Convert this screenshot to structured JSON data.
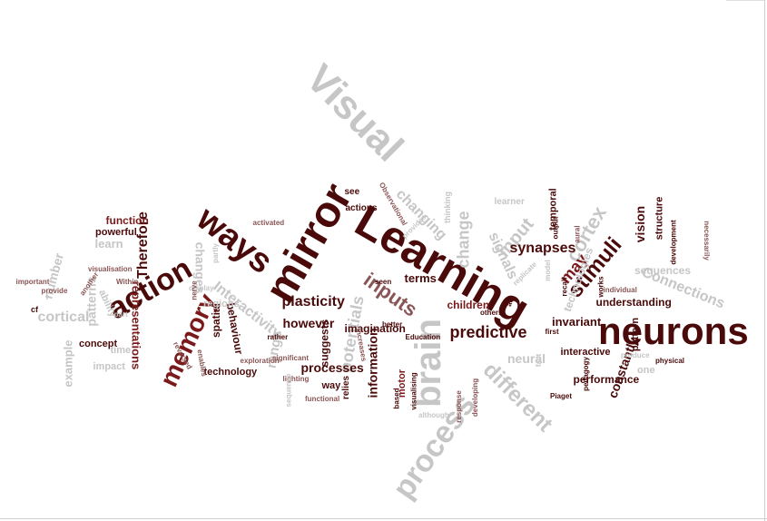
{
  "colors": {
    "dark": "#4a0a0a",
    "red": "#7a1a1a",
    "rose": "#8a5555",
    "gray": "#c6c6c6",
    "lightgray": "#d6d6d6"
  },
  "words": [
    {
      "text": "Learning",
      "color": "dark"
    },
    {
      "text": "neurons",
      "color": "dark"
    },
    {
      "text": "Visual",
      "color": "gray"
    },
    {
      "text": "mirror",
      "color": "dark"
    },
    {
      "text": "ways",
      "color": "dark"
    },
    {
      "text": "action",
      "color": "dark"
    },
    {
      "text": "brain",
      "color": "gray"
    },
    {
      "text": "process",
      "color": "gray"
    },
    {
      "text": "memory",
      "color": "red"
    },
    {
      "text": "stimuli",
      "color": "dark"
    },
    {
      "text": "different",
      "color": "gray"
    },
    {
      "text": "inputs",
      "color": "rose"
    },
    {
      "text": "input",
      "color": "gray"
    },
    {
      "text": "cortex",
      "color": "gray"
    },
    {
      "text": "Connections",
      "color": "gray"
    },
    {
      "text": "predictive",
      "color": "dark"
    },
    {
      "text": "potentials",
      "color": "gray"
    },
    {
      "text": "changing",
      "color": "gray"
    },
    {
      "text": "change",
      "color": "gray"
    },
    {
      "text": "signals",
      "color": "gray"
    },
    {
      "text": "may",
      "color": "red"
    },
    {
      "text": "synapses",
      "color": "dark"
    },
    {
      "text": "plasticity",
      "color": "dark"
    },
    {
      "text": "Interactivity",
      "color": "gray"
    },
    {
      "text": "Therefore",
      "color": "dark"
    },
    {
      "text": "changes",
      "color": "gray"
    },
    {
      "text": "learn",
      "color": "gray"
    },
    {
      "text": "patterns",
      "color": "gray"
    },
    {
      "text": "number",
      "color": "gray"
    },
    {
      "text": "cortical",
      "color": "gray"
    },
    {
      "text": "representations",
      "color": "red"
    },
    {
      "text": "processes",
      "color": "dark"
    },
    {
      "text": "information",
      "color": "dark"
    },
    {
      "text": "however",
      "color": "dark"
    },
    {
      "text": "range",
      "color": "gray"
    },
    {
      "text": "constantly",
      "color": "dark"
    },
    {
      "text": "neural",
      "color": "gray"
    },
    {
      "text": "invariant",
      "color": "dark"
    },
    {
      "text": "terms",
      "color": "dark"
    },
    {
      "text": "children",
      "color": "red"
    },
    {
      "text": "understanding",
      "color": "dark"
    },
    {
      "text": "sequences",
      "color": "gray"
    },
    {
      "text": "technologies",
      "color": "gray"
    },
    {
      "text": "vision",
      "color": "dark"
    },
    {
      "text": "structure",
      "color": "dark"
    },
    {
      "text": "temporal",
      "color": "dark"
    },
    {
      "text": "function",
      "color": "red"
    },
    {
      "text": "powerful",
      "color": "dark"
    },
    {
      "text": "ability",
      "color": "gray"
    },
    {
      "text": "concept",
      "color": "dark"
    },
    {
      "text": "example",
      "color": "gray"
    },
    {
      "text": "time",
      "color": "gray"
    },
    {
      "text": "impact",
      "color": "gray"
    },
    {
      "text": "spatial",
      "color": "dark"
    },
    {
      "text": "behaviour",
      "color": "dark"
    },
    {
      "text": "technology",
      "color": "dark"
    },
    {
      "text": "regions",
      "color": "gray"
    },
    {
      "text": "suggests",
      "color": "dark"
    },
    {
      "text": "imagination",
      "color": "dark"
    },
    {
      "text": "way",
      "color": "dark"
    },
    {
      "text": "relies",
      "color": "dark"
    },
    {
      "text": "motor",
      "color": "red"
    },
    {
      "text": "performance",
      "color": "dark"
    },
    {
      "text": "interactive",
      "color": "dark"
    },
    {
      "text": "pattern",
      "color": "dark"
    },
    {
      "text": "actions",
      "color": "dark"
    },
    {
      "text": "see",
      "color": "dark"
    },
    {
      "text": "thinking",
      "color": "gray"
    },
    {
      "text": "learner",
      "color": "gray"
    },
    {
      "text": "Observational",
      "color": "rose"
    },
    {
      "text": "activated",
      "color": "rose"
    },
    {
      "text": "display",
      "color": "gray"
    },
    {
      "text": "visualisation",
      "color": "rose"
    },
    {
      "text": "Within",
      "color": "rose"
    },
    {
      "text": "important",
      "color": "rose"
    },
    {
      "text": "provide",
      "color": "rose"
    },
    {
      "text": "another",
      "color": "rose"
    },
    {
      "text": "part",
      "color": "gray"
    },
    {
      "text": "reversed",
      "color": "rose"
    },
    {
      "text": "enables",
      "color": "rose"
    },
    {
      "text": "exploration",
      "color": "rose"
    },
    {
      "text": "rather",
      "color": "dark"
    },
    {
      "text": "significant",
      "color": "rose"
    },
    {
      "text": "lighting",
      "color": "rose"
    },
    {
      "text": "sequence",
      "color": "gray"
    },
    {
      "text": "functional",
      "color": "rose"
    },
    {
      "text": "increases",
      "color": "rose"
    },
    {
      "text": "Education",
      "color": "dark"
    },
    {
      "text": "better",
      "color": "dark"
    },
    {
      "text": "seen",
      "color": "dark"
    },
    {
      "text": "others",
      "color": "dark"
    },
    {
      "text": "first",
      "color": "dark"
    },
    {
      "text": "fact",
      "color": "gray"
    },
    {
      "text": "based",
      "color": "dark"
    },
    {
      "text": "Piaget",
      "color": "dark"
    },
    {
      "text": "although",
      "color": "gray"
    },
    {
      "text": "response",
      "color": "rose"
    },
    {
      "text": "developing",
      "color": "rose"
    },
    {
      "text": "visualising",
      "color": "dark"
    },
    {
      "text": "pedagogy",
      "color": "dark"
    },
    {
      "text": "physical",
      "color": "dark"
    },
    {
      "text": "individual",
      "color": "rose"
    },
    {
      "text": "recall",
      "color": "dark"
    },
    {
      "text": "works",
      "color": "dark"
    },
    {
      "text": "aural",
      "color": "rose"
    },
    {
      "text": "act",
      "color": "dark"
    },
    {
      "text": "output",
      "color": "dark"
    },
    {
      "text": "development",
      "color": "dark"
    },
    {
      "text": "necessarily",
      "color": "rose"
    },
    {
      "text": "produce",
      "color": "gray"
    },
    {
      "text": "model",
      "color": "gray"
    },
    {
      "text": "replicate",
      "color": "gray"
    },
    {
      "text": "provides",
      "color": "gray"
    },
    {
      "text": "nerve",
      "color": "rose"
    },
    {
      "text": "cf",
      "color": "dark"
    },
    {
      "text": "one",
      "color": "gray"
    },
    {
      "text": "partly",
      "color": "gray"
    },
    {
      "text": "i",
      "color": "gray"
    }
  ]
}
